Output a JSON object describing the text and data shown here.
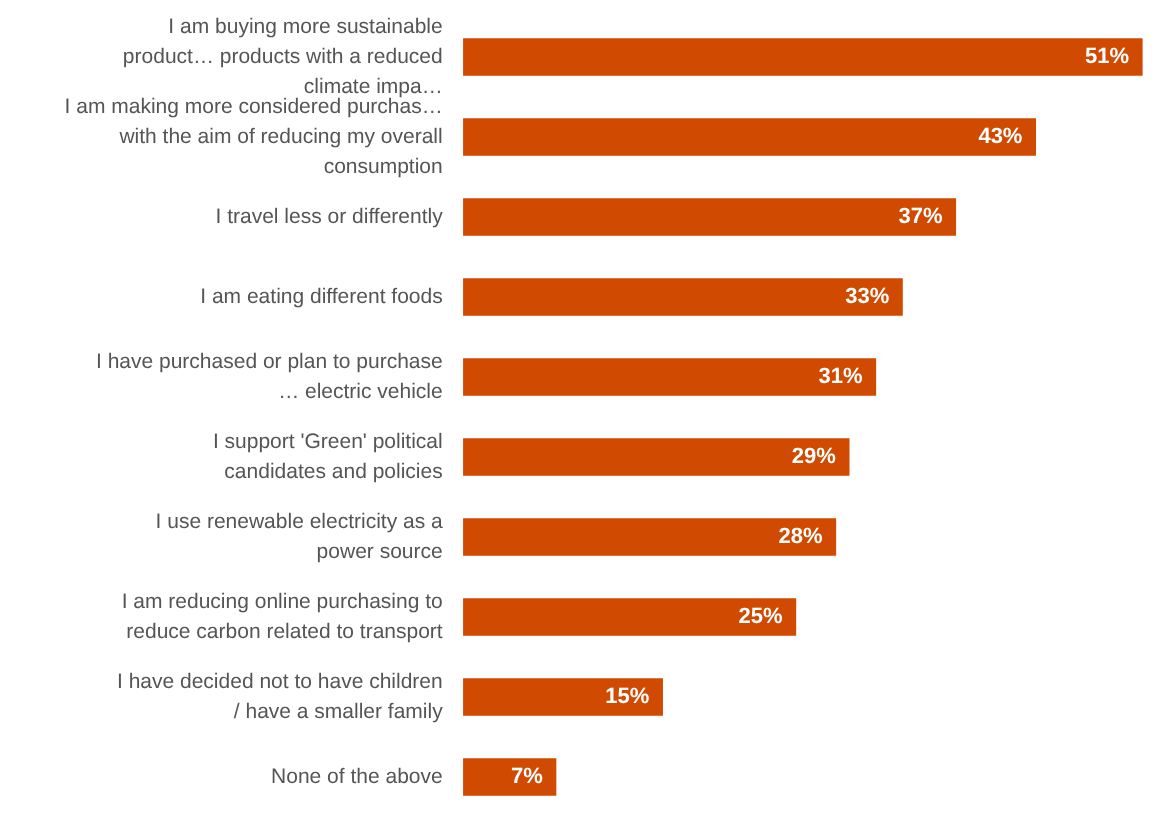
{
  "chart_data": {
    "type": "bar",
    "orientation": "horizontal",
    "categories": [
      "I am buying more sustainable product… products with a reduced climate impa…",
      "I am making more considered purchas… with the aim of reducing my overall consumption",
      "I travel less or differently",
      "I am eating different foods",
      "I have purchased or plan to purchase … electric vehicle",
      "I support 'Green' political candidates and policies",
      "I use renewable electricity as a power source",
      "I am reducing online purchasing to reduce carbon related to transport",
      "I have decided not to have children / have a smaller family",
      "None of the above"
    ],
    "values": [
      51,
      43,
      37,
      33,
      31,
      29,
      28,
      25,
      15,
      7
    ],
    "value_labels": [
      "51%",
      "43%",
      "37%",
      "33%",
      "31%",
      "29%",
      "28%",
      "25%",
      "15%",
      "7%"
    ],
    "color": "#d04a02",
    "grid": false
  }
}
